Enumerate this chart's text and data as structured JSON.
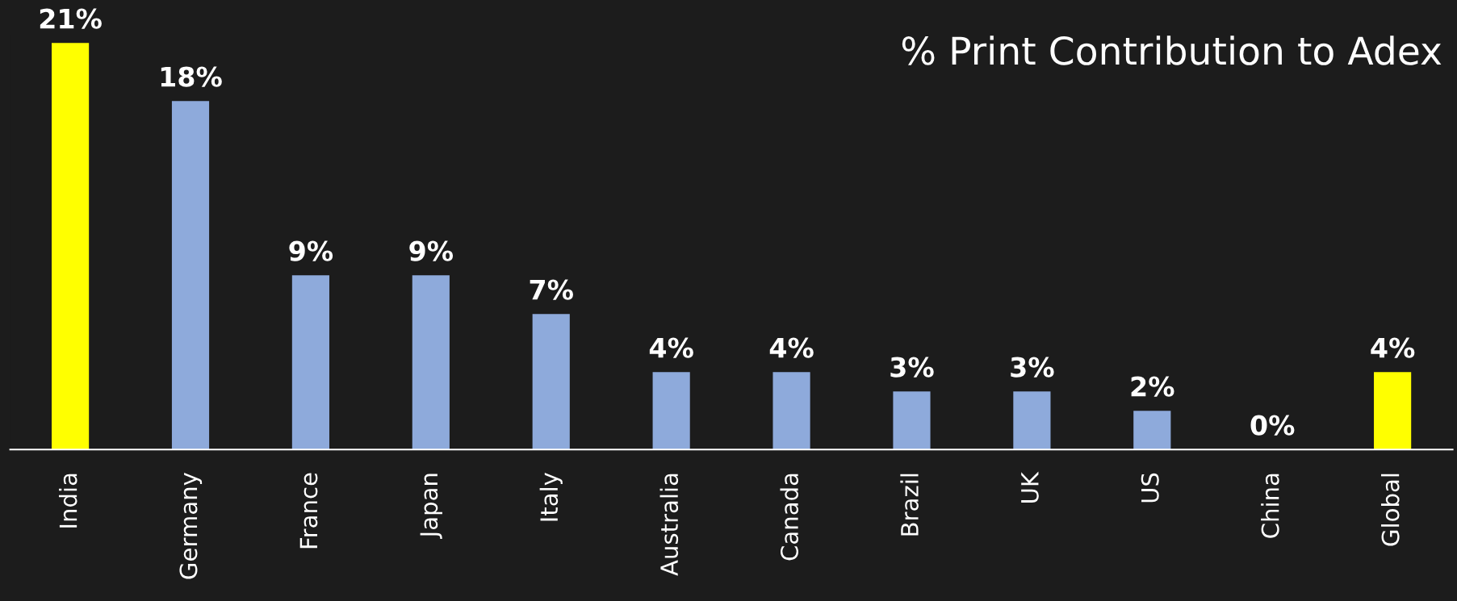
{
  "chart_data": {
    "type": "bar",
    "title": "% Print Contribution to Adex",
    "categories": [
      "India",
      "Germany",
      "France",
      "Japan",
      "Italy",
      "Australia",
      "Canada",
      "Brazil",
      "UK",
      "US",
      "China",
      "Global"
    ],
    "values": [
      21,
      18,
      9,
      9,
      7,
      4,
      4,
      3,
      3,
      2,
      0,
      4
    ],
    "value_labels": [
      "21%",
      "18%",
      "9%",
      "9%",
      "7%",
      "4%",
      "4%",
      "3%",
      "3%",
      "2%",
      "0%",
      "4%"
    ],
    "colors": [
      "#ffff00",
      "#8eaadb",
      "#8eaadb",
      "#8eaadb",
      "#8eaadb",
      "#8eaadb",
      "#8eaadb",
      "#8eaadb",
      "#8eaadb",
      "#8eaadb",
      "#8eaadb",
      "#ffff00"
    ],
    "grid": false,
    "legend": false
  }
}
